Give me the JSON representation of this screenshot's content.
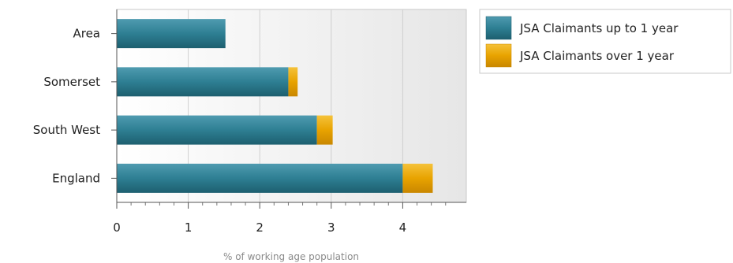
{
  "chart_data": {
    "type": "bar",
    "orientation": "horizontal",
    "stacked": true,
    "categories": [
      "Area",
      "Somerset",
      "South West",
      "England"
    ],
    "series": [
      {
        "name": "JSA Claimants up to 1 year",
        "values": [
          1.52,
          2.4,
          2.8,
          4.0
        ],
        "color": "#2e7f93"
      },
      {
        "name": "JSA Claimants over 1 year",
        "values": [
          0.0,
          0.13,
          0.22,
          0.42
        ],
        "color": "#e8a300"
      }
    ],
    "xlabel": "% of working age population",
    "ylabel": "",
    "xlim": [
      0,
      4.8
    ],
    "xticks": [
      0,
      1,
      2,
      3,
      4
    ],
    "grid": true,
    "legend_position": "top-right"
  }
}
